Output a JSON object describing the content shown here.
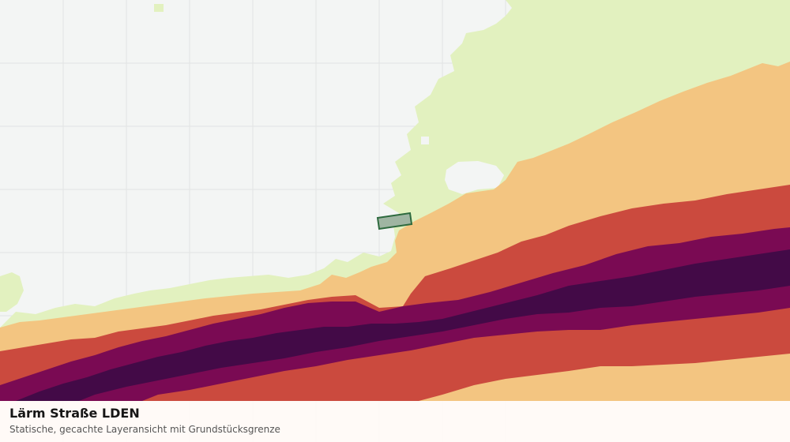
{
  "layer": {
    "title": "Lärm Straße LDEN",
    "subtitle": "Statische, gecachte Layeransicht mit Grundstücksgrenze"
  },
  "colors": {
    "background": "#f3f5f4",
    "grid": "#e2e4e3",
    "band_light": "#e2f1bf",
    "band_orange": "#f3c581",
    "band_red": "#cb4a3e",
    "band_magenta": "#7a0a53",
    "band_dark": "#430a47",
    "parcel_fill": "#9fb5a2",
    "parcel_stroke": "#2d6a3e"
  },
  "icons": {
    "parcel": "parcel-boundary-shape"
  }
}
